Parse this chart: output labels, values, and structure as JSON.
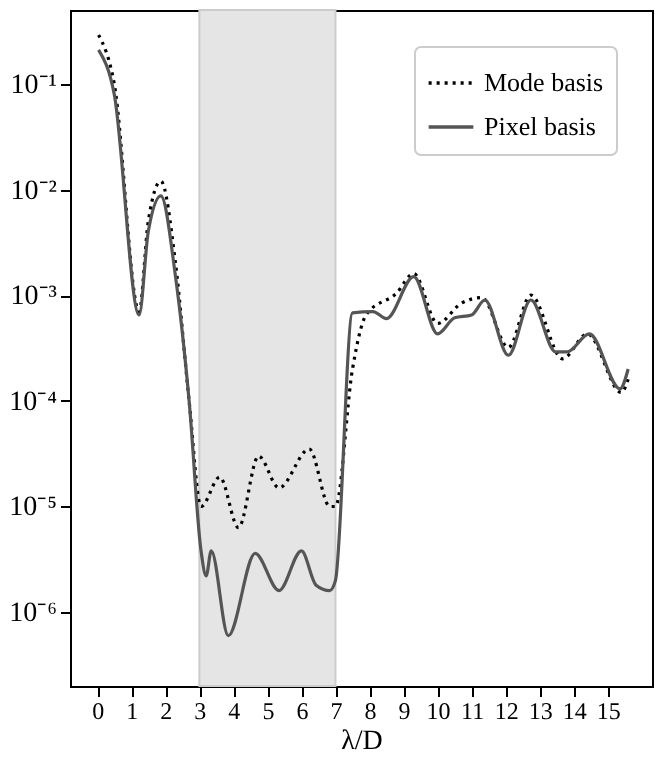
{
  "chart_data": {
    "type": "line",
    "xlabel": "λ/D",
    "log": "y",
    "xlim": [
      -0.8,
      16.3
    ],
    "xticks": [
      0,
      1,
      2,
      3,
      4,
      5,
      6,
      7,
      8,
      9,
      10,
      11,
      12,
      13,
      14,
      15
    ],
    "ylim": [
      2e-07,
      0.5
    ],
    "yticks": [
      {
        "value": 1e-06,
        "label": "10⁻⁶"
      },
      {
        "value": 1e-05,
        "label": "10⁻⁵"
      },
      {
        "value": 0.0001,
        "label": "10⁻⁴"
      },
      {
        "value": 0.001,
        "label": "10⁻³"
      },
      {
        "value": 0.01,
        "label": "10⁻²"
      },
      {
        "value": 0.1,
        "label": "10⁻¹"
      }
    ],
    "grid": false,
    "legend": "top right",
    "bands": [
      {
        "axis": "x",
        "from": 3,
        "to": 7,
        "color": "#e5e5e5"
      }
    ],
    "series": [
      {
        "name": "Mode basis",
        "color": "#000000",
        "line_style": "dotted",
        "x": [
          0.04,
          0.5,
          1.23,
          1.5,
          1.87,
          2.3,
          2.7,
          3.05,
          3.6,
          4.15,
          4.74,
          5.34,
          6.23,
          6.83,
          7.0,
          7.5,
          7.9,
          8.8,
          9.3,
          10.0,
          10.7,
          11.3,
          12.08,
          12.74,
          13.67,
          14.4,
          15.4,
          15.6
        ],
        "values": [
          0.29,
          0.1,
          0.0007,
          0.005,
          0.012,
          0.002,
          0.0001,
          1e-05,
          1.9e-05,
          6.3e-06,
          3e-05,
          1.5e-05,
          3.5e-05,
          1e-05,
          1e-05,
          0.0002,
          0.00065,
          0.00105,
          0.0016,
          0.00054,
          0.00084,
          0.00095,
          0.00032,
          0.001,
          0.00025,
          0.00043,
          0.00012,
          0.00016
        ]
      },
      {
        "name": "Pixel basis",
        "color": "#555555",
        "line_style": "solid",
        "x": [
          0.04,
          0.5,
          1.23,
          1.5,
          1.87,
          2.3,
          2.7,
          3.05,
          3.2,
          3.35,
          3.85,
          4.64,
          5.34,
          6.0,
          6.43,
          6.83,
          7.0,
          7.5,
          8.1,
          8.5,
          9.3,
          10.0,
          10.5,
          11.0,
          11.39,
          12.08,
          12.74,
          13.47,
          13.8,
          14.46,
          15.36,
          15.6
        ],
        "values": [
          0.21,
          0.08,
          0.00065,
          0.004,
          0.0087,
          0.0015,
          0.0001,
          3.8e-06,
          2.2e-06,
          3.8e-06,
          6e-07,
          3.6e-06,
          1.6e-06,
          3.8e-06,
          1.8e-06,
          1.6e-06,
          2e-06,
          0.00068,
          0.0007,
          0.0006,
          0.0015,
          0.00043,
          0.00061,
          0.00065,
          0.0009,
          0.00027,
          0.0009,
          0.00029,
          0.00029,
          0.00043,
          0.00013,
          0.0002
        ]
      }
    ]
  }
}
